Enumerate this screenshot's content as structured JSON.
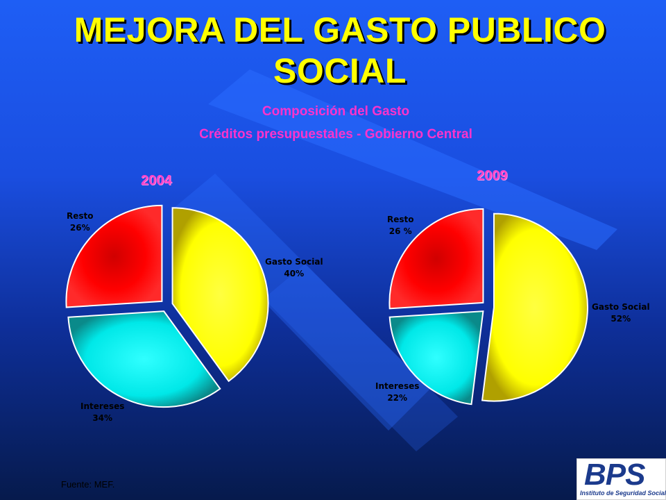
{
  "slide": {
    "title_line1": "MEJORA DEL GASTO PUBLICO",
    "title_line2": "SOCIAL",
    "source": "Fuente: MEF.",
    "logo_text": "BPS",
    "logo_subtitle": "Instituto de Seguridad Social"
  },
  "chart_data": [
    {
      "type": "pie",
      "title": "Composición del Gasto",
      "subtitle": "Créditos presupuestales - Gobierno Central",
      "year_label": "2004",
      "slices": [
        {
          "name": "Gasto Social",
          "value": 40,
          "label": "40%",
          "color": "#ffff00"
        },
        {
          "name": "Intereses",
          "value": 34,
          "label": "34%",
          "color": "#00ffff"
        },
        {
          "name": "Resto",
          "value": 26,
          "label": "26%",
          "color": "#ff0000"
        }
      ]
    },
    {
      "type": "pie",
      "title": "Composición del Gasto",
      "subtitle": "Créditos presupuestales - Gobierno Central",
      "year_label": "2009",
      "slices": [
        {
          "name": "Gasto Social",
          "value": 52,
          "label": "52%",
          "color": "#ffff00"
        },
        {
          "name": "Intereses",
          "value": 22,
          "label": "22%",
          "color": "#00ffff"
        },
        {
          "name": "Resto",
          "value": 26,
          "label": "26 %",
          "color": "#ff0000"
        }
      ]
    }
  ]
}
